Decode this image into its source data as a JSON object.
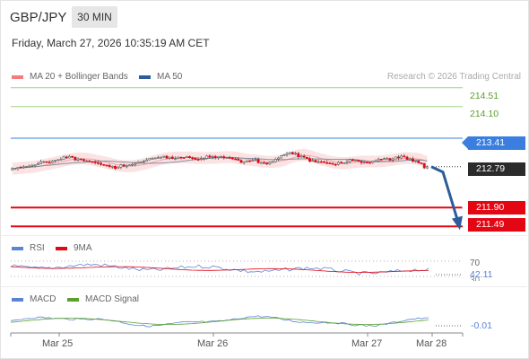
{
  "header": {
    "symbol": "GBP/JPY",
    "timeframe": "30 MIN",
    "datetime": "Friday, March 27, 2026 10:35:19 AM CET"
  },
  "legend": {
    "ma20": {
      "label": "MA 20 + Bollinger Bands",
      "color": "#f47c7c"
    },
    "ma50": {
      "label": "MA 50",
      "color": "#2e5c9a"
    },
    "research": "Research © 2026 Trading Central"
  },
  "levels": [
    {
      "value": "214.51",
      "type": "target",
      "color": "#5aa02c",
      "style": "text"
    },
    {
      "value": "214.10",
      "type": "target",
      "color": "#5aa02c",
      "style": "text"
    },
    {
      "value": "213.41",
      "type": "pivot",
      "color": "#3a7ee0",
      "style": "tag"
    },
    {
      "value": "212.79",
      "type": "last",
      "color": "#2b2b2b",
      "style": "tag"
    },
    {
      "value": "211.90",
      "type": "support",
      "color": "#e30613",
      "style": "tag"
    },
    {
      "value": "211.49",
      "type": "support",
      "color": "#e30613",
      "style": "tag"
    }
  ],
  "rsi": {
    "legend": [
      {
        "label": "RSI",
        "color": "#5b84d6"
      },
      {
        "label": "9MA",
        "color": "#e30613"
      }
    ],
    "level_label": "70",
    "value": "42.11",
    "low_label": "30"
  },
  "macd": {
    "legend": [
      {
        "label": "MACD",
        "color": "#5b84d6"
      },
      {
        "label": "MACD Signal",
        "color": "#5aa02c"
      }
    ],
    "value": "-0.01"
  },
  "x_axis": [
    "Mar 25",
    "Mar 26",
    "Mar 27",
    "Mar 28"
  ],
  "chart_data": {
    "type": "candlestick",
    "title": "GBP/JPY",
    "timeframe": "30 MIN",
    "ylim": [
      211.3,
      214.7
    ],
    "x_labels": [
      "Mar 25",
      "Mar 26",
      "Mar 27",
      "Mar 28"
    ],
    "closes": [
      212.75,
      212.78,
      212.8,
      212.82,
      212.85,
      212.9,
      212.88,
      212.93,
      212.95,
      212.98,
      213.0,
      212.96,
      212.92,
      212.9,
      212.88,
      212.84,
      212.82,
      212.8,
      212.78,
      212.8,
      212.83,
      212.86,
      212.9,
      212.94,
      212.97,
      212.99,
      213.02,
      213.0,
      212.97,
      212.99,
      213.01,
      212.98,
      212.95,
      212.97,
      213.0,
      212.99,
      213.01,
      212.99,
      212.96,
      212.93,
      212.9,
      212.92,
      212.95,
      212.88,
      212.85,
      212.9,
      212.98,
      213.05,
      213.1,
      213.08,
      213.02,
      212.97,
      212.93,
      212.9,
      212.88,
      212.86,
      212.84,
      212.87,
      212.9,
      212.92,
      212.91,
      212.89,
      212.88,
      212.92,
      212.95,
      212.97,
      212.96,
      212.98,
      213.0,
      212.96,
      212.92,
      212.86,
      212.79
    ],
    "series": [
      {
        "name": "MA 20 + Bollinger Bands"
      },
      {
        "name": "MA 50"
      }
    ]
  }
}
